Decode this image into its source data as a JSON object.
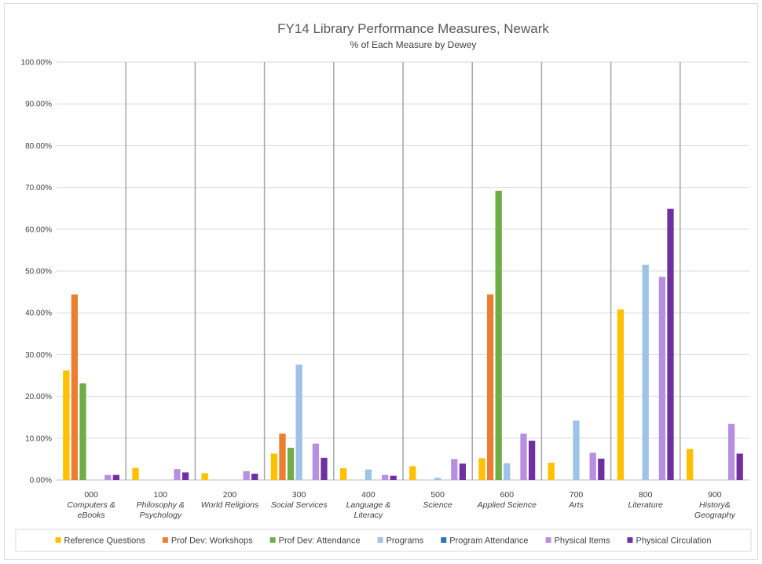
{
  "chart_data": {
    "type": "bar",
    "title": "FY14 Library Performance Measures, Newark",
    "subtitle": "% of Each Measure by Dewey",
    "ylim": [
      0,
      100
    ],
    "yticks": [
      "0.00%",
      "10.00%",
      "20.00%",
      "30.00%",
      "40.00%",
      "50.00%",
      "60.00%",
      "70.00%",
      "80.00%",
      "90.00%",
      "100.00%"
    ],
    "grid": true,
    "legend_position": "bottom",
    "categories": [
      {
        "code": "000",
        "name_lines": [
          "Computers &",
          "eBooks"
        ]
      },
      {
        "code": "100",
        "name_lines": [
          "Philosophy &",
          "Psychology"
        ]
      },
      {
        "code": "200",
        "name_lines": [
          "World Religions"
        ]
      },
      {
        "code": "300",
        "name_lines": [
          "Social Services"
        ]
      },
      {
        "code": "400",
        "name_lines": [
          "Language &",
          "Literacy"
        ]
      },
      {
        "code": "500",
        "name_lines": [
          "Science"
        ]
      },
      {
        "code": "600",
        "name_lines": [
          "Applied Science"
        ]
      },
      {
        "code": "700",
        "name_lines": [
          "Arts"
        ]
      },
      {
        "code": "800",
        "name_lines": [
          "Literature"
        ]
      },
      {
        "code": "900",
        "name_lines": [
          "History&",
          "Geography"
        ]
      }
    ],
    "series": [
      {
        "name": "Reference Questions",
        "color": "#FFC000",
        "values": [
          26.2,
          2.9,
          1.6,
          6.3,
          2.8,
          3.3,
          5.2,
          4.1,
          40.8,
          7.4
        ]
      },
      {
        "name": "Prof Dev: Workshops",
        "color": "#ED7D31",
        "values": [
          44.4,
          0,
          0,
          11.1,
          0,
          0,
          44.4,
          0,
          0,
          0
        ]
      },
      {
        "name": "Prof Dev: Attendance",
        "color": "#70AD47",
        "values": [
          23.1,
          0,
          0,
          7.7,
          0,
          0,
          69.2,
          0,
          0,
          0
        ]
      },
      {
        "name": "Programs",
        "color": "#9DC3E6",
        "values": [
          0,
          0,
          0,
          27.6,
          2.5,
          0.5,
          4.0,
          14.2,
          51.5,
          0
        ]
      },
      {
        "name": "Program Attendance",
        "color": "#2E75B6",
        "values": [
          0,
          0,
          0,
          0,
          0,
          0,
          0,
          0,
          0,
          0
        ]
      },
      {
        "name": "Physical Items",
        "color": "#B88FE0",
        "values": [
          1.2,
          2.6,
          2.1,
          8.7,
          1.2,
          5.0,
          11.1,
          6.5,
          48.6,
          13.4
        ]
      },
      {
        "name": "Physical Circulation",
        "color": "#7030A0",
        "values": [
          1.2,
          1.8,
          1.5,
          5.3,
          1.0,
          3.9,
          9.4,
          5.1,
          64.9,
          6.3
        ]
      }
    ]
  }
}
